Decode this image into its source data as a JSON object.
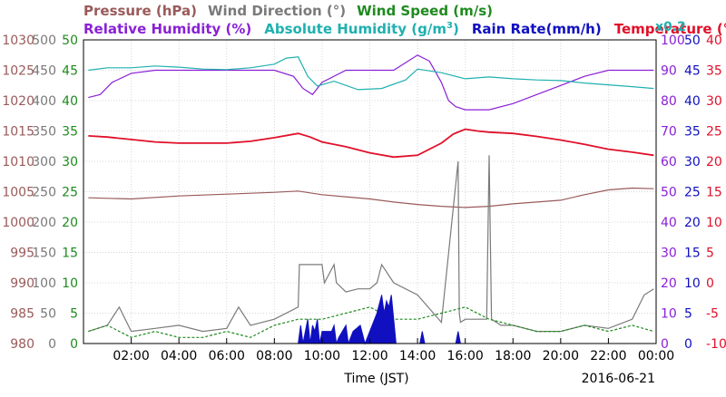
{
  "chart_data": {
    "type": "line",
    "titles": {
      "row1": [
        {
          "text": "Pressure (hPa)",
          "color": "#9a5a5a"
        },
        {
          "text": "Wind Direction (°)",
          "color": "#7a7a7a"
        },
        {
          "text": "Wind Speed (m/s)",
          "color": "#1f8a1f"
        }
      ],
      "row2": [
        {
          "text": "Relative Humidity (%)",
          "color": "#8a20d6"
        },
        {
          "text": "Absolute Humidity (g/m",
          "sup": "3",
          "close": ")",
          "color": "#20b0b0"
        },
        {
          "text": "Rain Rate(mm/h)",
          "color": "#1010c0"
        },
        {
          "text": "Temperature (°C)",
          "color": "#e0102a"
        }
      ],
      "multiplier": {
        "text": "x0.2",
        "color": "#20b0b0"
      }
    },
    "xlabel": "Time (JST)",
    "date": "2016-06-21",
    "x_ticks": [
      "02:00",
      "04:00",
      "06:00",
      "08:00",
      "10:00",
      "12:00",
      "14:00",
      "16:00",
      "18:00",
      "20:00",
      "22:00",
      "00:00"
    ],
    "xlim": [
      0,
      24
    ],
    "left_axes": [
      {
        "name": "Pressure (hPa)",
        "color": "#9a5a5a",
        "ticks": [
          "1030",
          "1025",
          "1020",
          "1015",
          "1010",
          "1005",
          "1000",
          "995",
          "990",
          "985",
          "980"
        ],
        "ylim": [
          980,
          1030
        ]
      },
      {
        "name": "Wind Direction (°)",
        "color": "#7a7a7a",
        "ticks": [
          "500",
          "450",
          "400",
          "350",
          "300",
          "250",
          "200",
          "150",
          "100",
          "50",
          "0"
        ],
        "ylim": [
          0,
          500
        ]
      },
      {
        "name": "Wind Speed (m/s)",
        "color": "#1f8a1f",
        "ticks": [
          "50",
          "45",
          "40",
          "35",
          "30",
          "25",
          "20",
          "15",
          "10",
          "5",
          "0"
        ],
        "ylim": [
          0,
          50
        ]
      }
    ],
    "right_axes": [
      {
        "name": "Relative Humidity (%)",
        "color": "#8a20d6",
        "ticks": [
          "100",
          "90",
          "80",
          "70",
          "60",
          "50",
          "40",
          "30",
          "20",
          "10",
          "0"
        ],
        "ylim": [
          0,
          100
        ]
      },
      {
        "name": "Rain Rate (mm/h)",
        "color": "#1010c0",
        "ticks": [
          "50",
          "45",
          "40",
          "35",
          "30",
          "25",
          "20",
          "15",
          "10",
          "5",
          "0"
        ],
        "ylim": [
          0,
          50
        ]
      },
      {
        "name": "Temperature (°C)",
        "color": "#e0102a",
        "ticks": [
          "40",
          "35",
          "30",
          "25",
          "20",
          "15",
          "10",
          "5",
          "0",
          "-5",
          "-10"
        ],
        "ylim": [
          -10,
          40
        ]
      }
    ],
    "grid": true,
    "series": [
      {
        "name": "Pressure (hPa)",
        "color": "#9a5a5a",
        "axis": "pressure",
        "x": [
          0.2,
          2,
          4,
          6,
          8,
          9,
          10,
          12,
          13,
          14,
          15,
          16,
          17,
          18,
          20,
          21,
          22,
          23,
          23.9
        ],
        "y": [
          1004.0,
          1003.8,
          1004.3,
          1004.6,
          1004.9,
          1005.1,
          1004.5,
          1003.8,
          1003.3,
          1002.9,
          1002.6,
          1002.4,
          1002.6,
          1003.0,
          1003.6,
          1004.5,
          1005.3,
          1005.6,
          1005.5
        ]
      },
      {
        "name": "Temperature (°C)",
        "color": "#e0102a",
        "axis": "temperature",
        "x": [
          0.2,
          1,
          2,
          3,
          4,
          5,
          6,
          7,
          8,
          9,
          9.5,
          10,
          11,
          12,
          13,
          14,
          15,
          15.5,
          16,
          16.5,
          17,
          18,
          19,
          20,
          21,
          22,
          23,
          23.9
        ],
        "y": [
          24.2,
          24.0,
          23.6,
          23.2,
          23.0,
          23.0,
          23.0,
          23.3,
          23.9,
          24.6,
          24.0,
          23.2,
          22.4,
          21.4,
          20.7,
          21.0,
          23.0,
          24.5,
          25.3,
          25.0,
          24.8,
          24.6,
          24.1,
          23.5,
          22.8,
          22.0,
          21.5,
          21.0
        ]
      },
      {
        "name": "Relative Humidity (%)",
        "color": "#8a20d6",
        "axis": "humidity",
        "x": [
          0.2,
          0.7,
          1.2,
          2,
          3,
          4,
          5,
          6,
          7,
          8,
          8.8,
          9.2,
          9.6,
          10,
          11,
          12,
          13,
          14,
          14.5,
          15,
          15.3,
          15.6,
          16,
          17,
          18,
          19,
          20,
          21,
          22,
          23,
          23.9
        ],
        "y": [
          81,
          82,
          86,
          89,
          90,
          90,
          90,
          90,
          90,
          90,
          88,
          84,
          82,
          86,
          90,
          90,
          90,
          95,
          93,
          86,
          80,
          78,
          77,
          77,
          79,
          82,
          85,
          88,
          90,
          90,
          90
        ]
      },
      {
        "name": "Absolute Humidity (g/m3)",
        "color": "#20b0b0",
        "axis": "wind_speed",
        "x": [
          0.2,
          1,
          2,
          3,
          4,
          5,
          6,
          7,
          8,
          8.5,
          9,
          9.4,
          9.8,
          10.5,
          11.5,
          12.5,
          13.5,
          14,
          15,
          16,
          17,
          18,
          19,
          20,
          21,
          22,
          23,
          23.9
        ],
        "y": [
          45.0,
          45.4,
          45.4,
          45.7,
          45.5,
          45.2,
          45.1,
          45.4,
          46.0,
          47.0,
          47.2,
          44.0,
          42.4,
          43.2,
          41.8,
          42.0,
          43.4,
          45.2,
          44.6,
          43.6,
          43.9,
          43.6,
          43.4,
          43.3,
          42.9,
          42.6,
          42.3,
          42.0
        ]
      },
      {
        "name": "Wind Direction (°)",
        "color": "#7a7a7a",
        "axis": "wind_direction",
        "x": [
          0.2,
          1,
          1.5,
          2,
          3,
          4,
          5,
          6,
          6.5,
          7,
          8,
          9,
          9.05,
          10,
          10.1,
          10.5,
          10.6,
          11,
          11.5,
          12,
          12.3,
          12.5,
          13,
          14,
          15,
          15.7,
          15.75,
          15.8,
          16,
          16.9,
          17,
          17.1,
          17.5,
          18,
          19,
          20,
          21,
          22,
          23,
          23.5,
          23.9
        ],
        "y": [
          20,
          30,
          60,
          20,
          25,
          30,
          20,
          25,
          60,
          30,
          40,
          60,
          130,
          130,
          100,
          130,
          100,
          85,
          90,
          90,
          100,
          130,
          100,
          80,
          35,
          300,
          50,
          35,
          40,
          40,
          310,
          40,
          30,
          30,
          20,
          20,
          30,
          25,
          40,
          80,
          90
        ]
      },
      {
        "name": "Wind Speed (m/s)",
        "color": "#1f8a1f",
        "axis": "wind_speed",
        "x": [
          0.2,
          1,
          2,
          3,
          4,
          5,
          6,
          7,
          8,
          9,
          10,
          11,
          12,
          13,
          14,
          15,
          16,
          17,
          18,
          19,
          20,
          21,
          22,
          23,
          23.9
        ],
        "y": [
          2,
          3,
          1,
          2,
          1,
          1,
          2,
          1,
          3,
          4,
          4,
          5,
          6,
          4,
          4,
          5,
          6,
          4,
          3,
          2,
          2,
          3,
          2,
          3,
          2
        ]
      },
      {
        "name": "Rain Rate (mm/h)",
        "color": "#1010c0",
        "axis": "rain",
        "x": [
          9.0,
          9.1,
          9.2,
          9.3,
          9.4,
          9.5,
          9.6,
          9.7,
          9.8,
          9.9,
          10.0,
          10.4,
          10.5,
          10.6,
          10.7,
          11.0,
          11.1,
          11.3,
          11.6,
          11.8,
          12.1,
          12.3,
          12.5,
          12.6,
          12.7,
          12.8,
          12.9,
          13.0,
          13.05,
          13.1,
          14.1,
          14.2,
          14.3,
          15.6,
          15.7,
          15.8
        ],
        "y": [
          0,
          3,
          0,
          2,
          4,
          0,
          3,
          2,
          4,
          0,
          2,
          2,
          3,
          0,
          1,
          3,
          0,
          2,
          3,
          0,
          3,
          5,
          8,
          5,
          7,
          6,
          8,
          4,
          2,
          0,
          0,
          2,
          0,
          0,
          2,
          0
        ]
      }
    ]
  }
}
